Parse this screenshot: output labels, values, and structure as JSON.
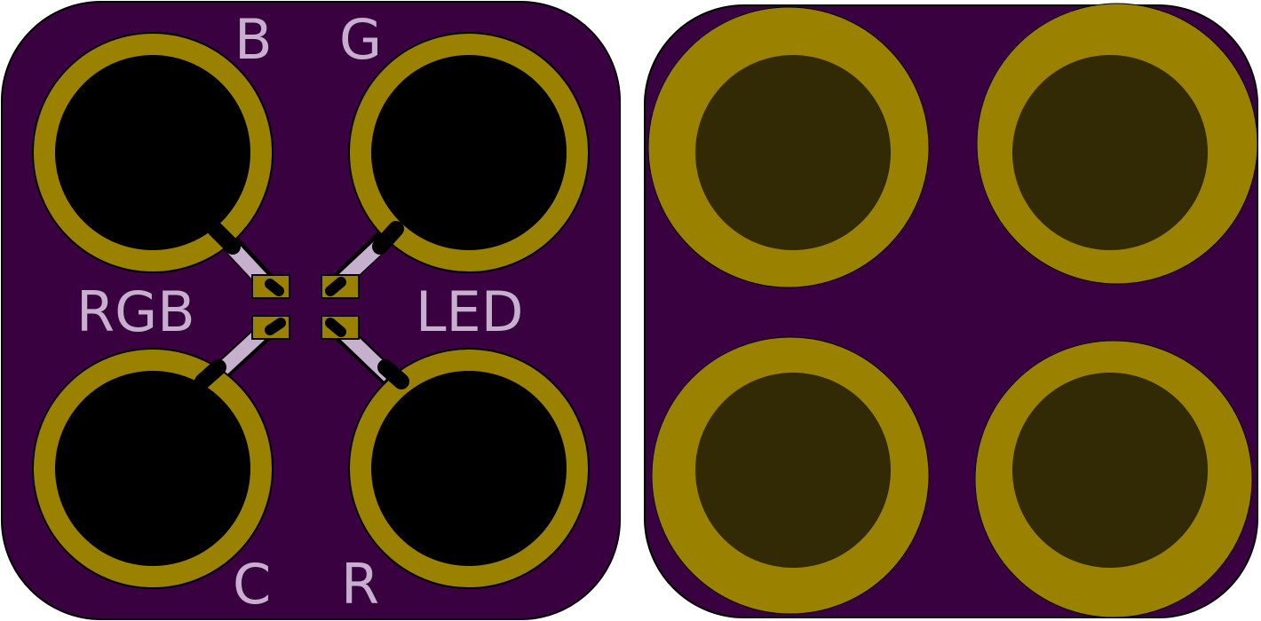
{
  "colors": {
    "board": "#3a0140",
    "copper": "#9a8200",
    "copper_dark": "#322905",
    "drill": "#000000",
    "silkscreen": "#c7b0cd",
    "edge": "#000000"
  },
  "front": {
    "labels": {
      "b": "B",
      "g": "G",
      "c": "C",
      "r": "R",
      "rgb": "RGB",
      "led": "LED"
    },
    "pads": [
      "b-pad",
      "g-pad",
      "c-pad",
      "r-pad"
    ],
    "smd_pads": 4
  },
  "back": {
    "pads": [
      "top-left-pad",
      "top-right-pad",
      "bottom-left-pad",
      "bottom-right-pad"
    ]
  }
}
